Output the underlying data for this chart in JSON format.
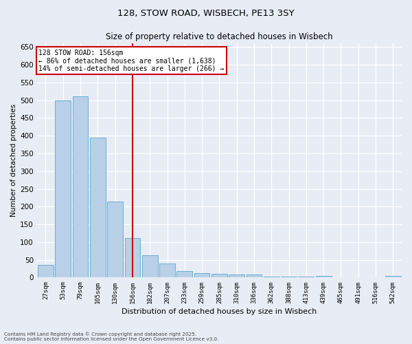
{
  "title_line1": "128, STOW ROAD, WISBECH, PE13 3SY",
  "title_line2": "Size of property relative to detached houses in Wisbech",
  "xlabel": "Distribution of detached houses by size in Wisbech",
  "ylabel": "Number of detached properties",
  "categories": [
    "27sqm",
    "53sqm",
    "79sqm",
    "105sqm",
    "130sqm",
    "156sqm",
    "182sqm",
    "207sqm",
    "233sqm",
    "259sqm",
    "285sqm",
    "310sqm",
    "336sqm",
    "362sqm",
    "388sqm",
    "413sqm",
    "439sqm",
    "465sqm",
    "491sqm",
    "516sqm",
    "542sqm"
  ],
  "values": [
    35,
    500,
    510,
    395,
    215,
    112,
    62,
    40,
    18,
    13,
    10,
    8,
    8,
    3,
    3,
    2,
    5,
    1,
    0,
    1,
    4
  ],
  "bar_color": "#b8d0e8",
  "bar_edge_color": "#6baed6",
  "reference_line_index": 5,
  "reference_line_color": "#cc0000",
  "annotation_box_text": "128 STOW ROAD: 156sqm\n← 86% of detached houses are smaller (1,638)\n14% of semi-detached houses are larger (266) →",
  "ylim": [
    0,
    660
  ],
  "yticks": [
    0,
    50,
    100,
    150,
    200,
    250,
    300,
    350,
    400,
    450,
    500,
    550,
    600,
    650
  ],
  "background_color": "#e8ecf5",
  "grid_color": "#ffffff",
  "footer_line1": "Contains HM Land Registry data © Crown copyright and database right 2025.",
  "footer_line2": "Contains public sector information licensed under the Open Government Licence v3.0."
}
